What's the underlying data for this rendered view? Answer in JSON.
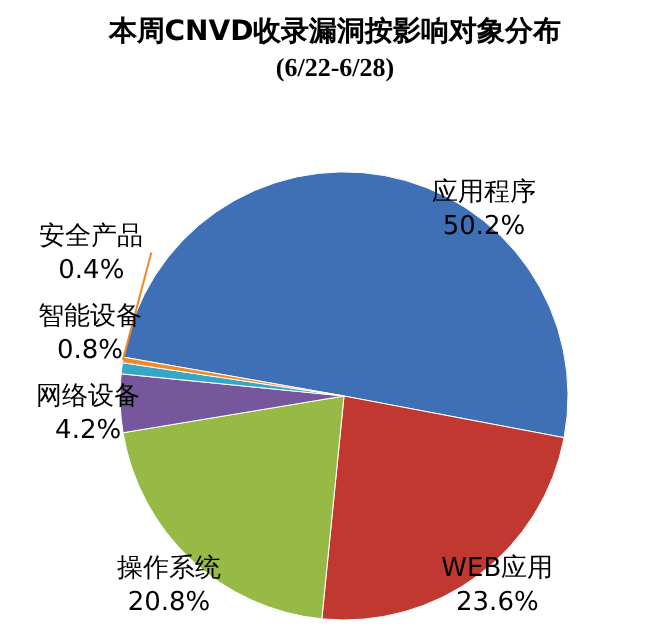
{
  "chart_data": {
    "type": "pie",
    "title": "本周CNVD收录漏洞按影响对象分布",
    "subtitle": "(6/22-6/28)",
    "categories": [
      "应用程序",
      "WEB应用",
      "操作系统",
      "网络设备",
      "智能设备",
      "安全产品"
    ],
    "values": [
      50.2,
      23.6,
      20.8,
      4.2,
      0.8,
      0.4
    ],
    "colors": [
      "#3f6fb4",
      "#c0382f",
      "#97ba47",
      "#77579b",
      "#38a6c6",
      "#f0892a"
    ],
    "value_labels": [
      "50.2%",
      "23.6%",
      "20.8%",
      "4.2%",
      "0.8%",
      "0.4%"
    ]
  }
}
